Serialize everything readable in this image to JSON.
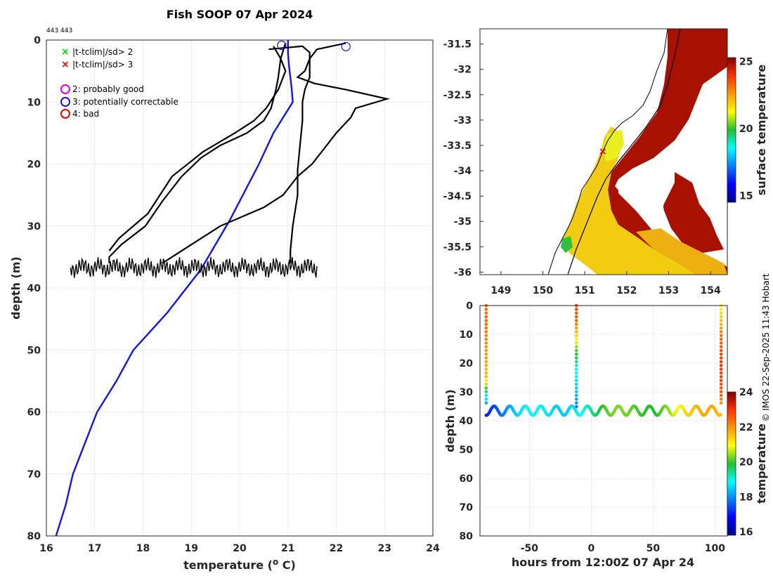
{
  "title": "Fish SOOP 07 Apr 2024",
  "id_label": "443 443",
  "credit": "© IMOS 22-Sep-2025 11:43 Hobart",
  "legend": {
    "flag_green": "|t-tclim|/sd> 2",
    "flag_red": "|t-tclim|/sd> 3",
    "qc2": "2: probably good",
    "qc3": "3: potentially correctable",
    "qc4": "4: bad"
  },
  "colors": {
    "profile": "#000000",
    "climatology": "#1414e6",
    "flag_green": "#00dd00",
    "flag_red": "#ee0000",
    "qc2": "#dd00dd",
    "qc3": "#1414e6",
    "qc4": "#ee0000"
  },
  "chart_data": [
    {
      "type": "line",
      "name": "profile",
      "title": "Fish SOOP 07 Apr 2024",
      "xlabel": "temperature (o C)",
      "ylabel": "depth (m)",
      "xlim": [
        16,
        24
      ],
      "ylim": [
        80,
        0
      ],
      "xticks": [
        16,
        17,
        18,
        19,
        20,
        21,
        22,
        23,
        24
      ],
      "yticks": [
        0,
        10,
        20,
        30,
        40,
        50,
        60,
        70,
        80
      ],
      "grid": true,
      "series": [
        {
          "name": "climatology",
          "color": "#1414e6",
          "points": [
            [
              21.0,
              0
            ],
            [
              21.0,
              2
            ],
            [
              21.02,
              4
            ],
            [
              21.05,
              6
            ],
            [
              21.08,
              8
            ],
            [
              21.1,
              10
            ],
            [
              20.7,
              15
            ],
            [
              20.4,
              20
            ],
            [
              19.8,
              29
            ],
            [
              19.2,
              37
            ],
            [
              18.5,
              44
            ],
            [
              17.8,
              50
            ],
            [
              17.45,
              55
            ],
            [
              17.05,
              60
            ],
            [
              16.8,
              65
            ],
            [
              16.55,
              70
            ],
            [
              16.4,
              75
            ],
            [
              16.2,
              80
            ]
          ]
        },
        {
          "name": "profile-1",
          "color": "#000000",
          "points": [
            [
              20.95,
              0.5
            ],
            [
              20.85,
              3
            ],
            [
              20.8,
              6
            ],
            [
              20.75,
              8
            ],
            [
              20.65,
              11
            ],
            [
              20.5,
              13
            ],
            [
              20.15,
              15
            ],
            [
              19.6,
              17
            ],
            [
              19.2,
              19
            ],
            [
              18.8,
              22
            ],
            [
              18.4,
              26
            ],
            [
              18.05,
              30
            ],
            [
              17.55,
              33
            ],
            [
              17.3,
              35
            ],
            [
              17.3,
              36
            ]
          ]
        },
        {
          "name": "profile-2",
          "color": "#000000",
          "points": [
            [
              20.7,
              1
            ],
            [
              20.85,
              3
            ],
            [
              20.95,
              5
            ],
            [
              20.8,
              8
            ],
            [
              20.55,
              11
            ],
            [
              20.3,
              13
            ],
            [
              19.9,
              15
            ],
            [
              19.25,
              18
            ],
            [
              18.6,
              22
            ],
            [
              18.1,
              28
            ],
            [
              17.5,
              32
            ],
            [
              17.3,
              34
            ]
          ]
        },
        {
          "name": "profile-3",
          "color": "#000000",
          "points": [
            [
              22.2,
              0.5
            ],
            [
              21.6,
              1.5
            ],
            [
              21.45,
              3
            ],
            [
              21.35,
              5
            ],
            [
              21.2,
              6
            ],
            [
              21.55,
              7
            ],
            [
              22.2,
              8
            ],
            [
              23.05,
              9.5
            ],
            [
              22.4,
              11
            ],
            [
              22.3,
              12.5
            ],
            [
              22.0,
              15
            ],
            [
              21.8,
              17
            ],
            [
              21.5,
              20
            ],
            [
              21.2,
              22
            ],
            [
              20.9,
              25
            ],
            [
              20.5,
              27
            ],
            [
              19.6,
              30
            ],
            [
              19.0,
              33
            ],
            [
              18.4,
              36
            ]
          ]
        },
        {
          "name": "profile-4",
          "color": "#000000",
          "points": [
            [
              20.6,
              1.5
            ],
            [
              21.3,
              1
            ],
            [
              21.45,
              2
            ],
            [
              21.45,
              4
            ],
            [
              21.45,
              6
            ],
            [
              21.35,
              8
            ],
            [
              21.3,
              10
            ],
            [
              21.3,
              13
            ],
            [
              21.25,
              17
            ],
            [
              21.2,
              21
            ],
            [
              21.2,
              25
            ],
            [
              21.1,
              30
            ],
            [
              21.05,
              34
            ],
            [
              21.05,
              36
            ]
          ]
        },
        {
          "name": "bottom-tow",
          "color": "#000000",
          "points": [
            [
              17.3,
              36
            ],
            [
              19.0,
              37
            ],
            [
              20.2,
              36.5
            ],
            [
              21.1,
              37.5
            ],
            [
              21.6,
              36.3
            ]
          ]
        }
      ],
      "qc_markers": [
        {
          "label": "qc3",
          "t": 20.87,
          "z": 0.4
        },
        {
          "label": "qc3",
          "t": 22.2,
          "z": 0.6
        }
      ]
    },
    {
      "type": "heatmap",
      "name": "surface-temperature-map",
      "xlim": [
        148.5,
        154.4
      ],
      "ylim": [
        -36.05,
        -31.2
      ],
      "xticks": [
        149,
        150,
        151,
        152,
        153,
        154
      ],
      "yticks": [
        -31.5,
        -32,
        -32.5,
        -33,
        -33.5,
        -34,
        -34.5,
        -35,
        -35.5,
        -36
      ],
      "colorbar": {
        "label": "surface temperature",
        "range": [
          14.5,
          25.3
        ],
        "ticks": [
          15,
          20,
          25
        ]
      },
      "station": {
        "lon": 151.45,
        "lat": -33.5
      }
    },
    {
      "type": "scatter",
      "name": "depth-time-section",
      "xlabel": "hours from 12:00Z 07 Apr 24",
      "ylabel": "depth (m)",
      "xlim": [
        -90,
        110
      ],
      "ylim": [
        80,
        0
      ],
      "xticks": [
        -50,
        0,
        50,
        100
      ],
      "yticks": [
        0,
        10,
        20,
        30,
        40,
        50,
        60,
        70,
        80
      ],
      "colorbar": {
        "label": "temperature",
        "range": [
          15.8,
          24
        ],
        "ticks": [
          16,
          18,
          20,
          22,
          24
        ]
      },
      "series": [
        {
          "name": "cast-1",
          "hour": -85,
          "depth_temp": [
            [
              0,
              22.3
            ],
            [
              5,
              22.4
            ],
            [
              10,
              22.2
            ],
            [
              15,
              22.0
            ],
            [
              20,
              21.8
            ],
            [
              25,
              21.6
            ],
            [
              30,
              19.5
            ],
            [
              33,
              18.5
            ],
            [
              35,
              17.8
            ]
          ]
        },
        {
          "name": "cast-2",
          "hour": -12,
          "depth_temp": [
            [
              0,
              22.8
            ],
            [
              5,
              22.5
            ],
            [
              10,
              21.5
            ],
            [
              15,
              20.2
            ],
            [
              18,
              19.8
            ],
            [
              22,
              19.0
            ],
            [
              26,
              18.6
            ],
            [
              30,
              18.4
            ],
            [
              34,
              18.0
            ],
            [
              36,
              17.5
            ]
          ]
        },
        {
          "name": "cast-3",
          "hour": 105,
          "depth_temp": [
            [
              0,
              21.0
            ],
            [
              3,
              21.3
            ],
            [
              6,
              21.6
            ],
            [
              10,
              22.3
            ],
            [
              15,
              22.6
            ],
            [
              20,
              22.9
            ],
            [
              25,
              22.8
            ],
            [
              30,
              22.6
            ],
            [
              34,
              22.0
            ]
          ]
        }
      ],
      "tow": {
        "hour_range": [
          -85,
          105
        ],
        "mean_depth": 36.5,
        "temp_start": 17.6,
        "temp_end": 21.6
      }
    }
  ]
}
